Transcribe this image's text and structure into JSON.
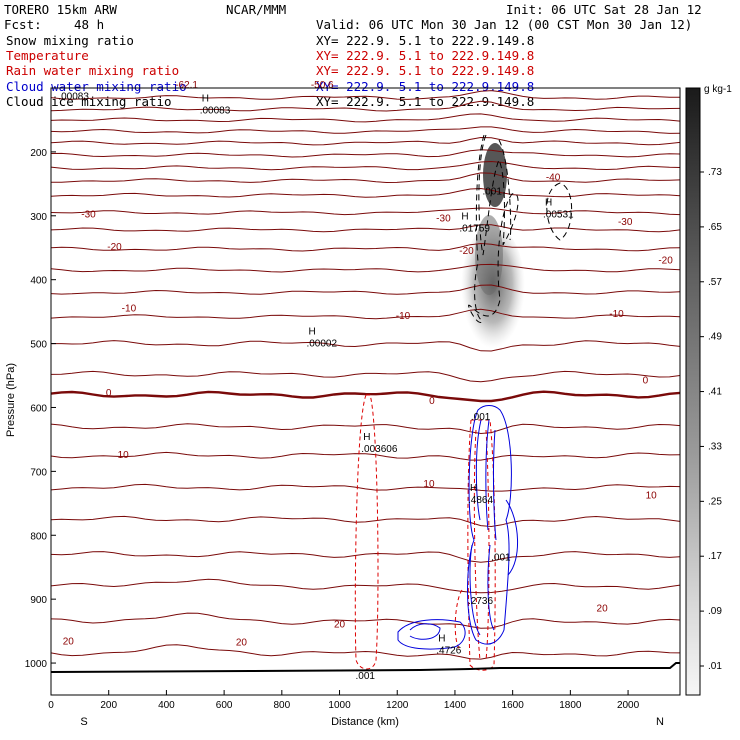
{
  "header": {
    "model": "TORERO  15km ARW",
    "center": "NCAR/MMM",
    "init": "Init: 06 UTC Sat 28 Jan 12",
    "fcst_label": "Fcst:",
    "fcst_value": "48 h",
    "valid": "Valid: 06 UTC Mon 30 Jan 12 (00 CST Mon 30 Jan 12)"
  },
  "fields": [
    {
      "name": "Snow mixing ratio",
      "xy": "XY= 222.9.  5.1 to 222.9.149.8",
      "color": "#000000"
    },
    {
      "name": "Temperature",
      "xy": "XY= 222.9.  5.1 to 222.9.149.8",
      "color": "#cc0000"
    },
    {
      "name": "Rain water mixing ratio",
      "xy": "XY= 222.9.  5.1 to 222.9.149.8",
      "color": "#cc0000"
    },
    {
      "name": "Cloud water mixing ratio",
      "xy": "XY= 222.9.  5.1 to 222.9.149.8",
      "color": "#0000cc"
    },
    {
      "name": "Cloud ice mixing ratio",
      "xy": "XY= 222.9.  5.1 to 222.9.149.8",
      "color": "#000000"
    }
  ],
  "chart_data": {
    "type": "cross-section",
    "xlabel": "Distance (km)",
    "ylabel": "Pressure (hPa)",
    "xlim": [
      0,
      2180
    ],
    "ylim": [
      1050,
      100
    ],
    "x_ticks": [
      0,
      200,
      400,
      600,
      800,
      1000,
      1200,
      1400,
      1600,
      1800,
      2000
    ],
    "y_ticks": [
      200,
      300,
      400,
      500,
      600,
      700,
      800,
      900,
      1000
    ],
    "x_end_labels": [
      "S",
      "N"
    ],
    "temperature_levels": [
      {
        "p": 115,
        "t": null
      },
      {
        "p": 133,
        "t": null
      },
      {
        "p": 150,
        "t": null
      },
      {
        "p": 168,
        "t": null
      },
      {
        "p": 186,
        "t": null
      },
      {
        "p": 205,
        "t": null
      },
      {
        "p": 225,
        "t": null
      },
      {
        "p": 245,
        "t": null
      },
      {
        "p": 268,
        "t": -40
      },
      {
        "p": 295,
        "t": -30
      },
      {
        "p": 322,
        "t": null
      },
      {
        "p": 352,
        "t": -20
      },
      {
        "p": 385,
        "t": null
      },
      {
        "p": 420,
        "t": -10
      },
      {
        "p": 458,
        "t": null
      },
      {
        "p": 500,
        "t": null
      },
      {
        "p": 548,
        "t": null
      },
      {
        "p": 580,
        "t": 0
      },
      {
        "p": 630,
        "t": null
      },
      {
        "p": 675,
        "t": 10
      },
      {
        "p": 725,
        "t": null
      },
      {
        "p": 775,
        "t": null
      },
      {
        "p": 830,
        "t": null
      },
      {
        "p": 880,
        "t": 20
      },
      {
        "p": 935,
        "t": null
      },
      {
        "p": 985,
        "t": null
      }
    ],
    "temperature_labels": [
      {
        "x": 470,
        "p": 95,
        "text": "-62.1"
      },
      {
        "x": 940,
        "p": 95,
        "text": "-50.6"
      },
      {
        "x": 1740,
        "p": 240,
        "text": "-40"
      },
      {
        "x": 130,
        "p": 298,
        "text": "-30"
      },
      {
        "x": 1360,
        "p": 304,
        "text": "-30"
      },
      {
        "x": 1990,
        "p": 310,
        "text": "-30"
      },
      {
        "x": 220,
        "p": 349,
        "text": "-20"
      },
      {
        "x": 1440,
        "p": 355,
        "text": "-20"
      },
      {
        "x": 2130,
        "p": 370,
        "text": "-20"
      },
      {
        "x": 270,
        "p": 445,
        "text": "-10"
      },
      {
        "x": 1220,
        "p": 457,
        "text": "-10"
      },
      {
        "x": 1960,
        "p": 454,
        "text": "-10"
      },
      {
        "x": 200,
        "p": 577,
        "text": "0"
      },
      {
        "x": 1320,
        "p": 590,
        "text": "0"
      },
      {
        "x": 2060,
        "p": 558,
        "text": "0"
      },
      {
        "x": 250,
        "p": 674,
        "text": "10"
      },
      {
        "x": 1310,
        "p": 720,
        "text": "10"
      },
      {
        "x": 2080,
        "p": 738,
        "text": "10"
      },
      {
        "x": 60,
        "p": 966,
        "text": "20"
      },
      {
        "x": 660,
        "p": 968,
        "text": "20"
      },
      {
        "x": 1000,
        "p": 940,
        "text": "20"
      },
      {
        "x": 1910,
        "p": 915,
        "text": "20"
      }
    ],
    "extrema_labels": [
      {
        "x": 550,
        "p": 135,
        "text": ".00083",
        "kind": "H"
      },
      {
        "x": 60,
        "p": 113,
        "text": ".00083",
        "kind": "none"
      },
      {
        "x": 920,
        "p": 500,
        "text": ".00002",
        "kind": "H"
      },
      {
        "x": 1450,
        "p": 320,
        "text": ".01759",
        "kind": "H"
      },
      {
        "x": 1740,
        "p": 298,
        "text": ".00531",
        "kind": "H"
      },
      {
        "x": 1530,
        "p": 262,
        "text": ".001",
        "kind": "none"
      },
      {
        "x": 1110,
        "p": 665,
        "text": ".003606",
        "kind": "H"
      },
      {
        "x": 1490,
        "p": 615,
        "text": ".001",
        "kind": "none"
      },
      {
        "x": 1480,
        "p": 745,
        "text": ".4864",
        "kind": "H"
      },
      {
        "x": 1560,
        "p": 835,
        "text": ".001",
        "kind": "none"
      },
      {
        "x": 1480,
        "p": 903,
        "text": ".2736",
        "kind": "none"
      },
      {
        "x": 1370,
        "p": 980,
        "text": ".4726",
        "kind": "H"
      },
      {
        "x": 1090,
        "p": 1020,
        "text": ".001",
        "kind": "none"
      }
    ],
    "colorbar": {
      "unit": "g kg-1",
      "labels": [
        ".73",
        ".65",
        ".57",
        ".49",
        ".41",
        ".33",
        ".25",
        ".17",
        ".09",
        ".01"
      ]
    }
  }
}
